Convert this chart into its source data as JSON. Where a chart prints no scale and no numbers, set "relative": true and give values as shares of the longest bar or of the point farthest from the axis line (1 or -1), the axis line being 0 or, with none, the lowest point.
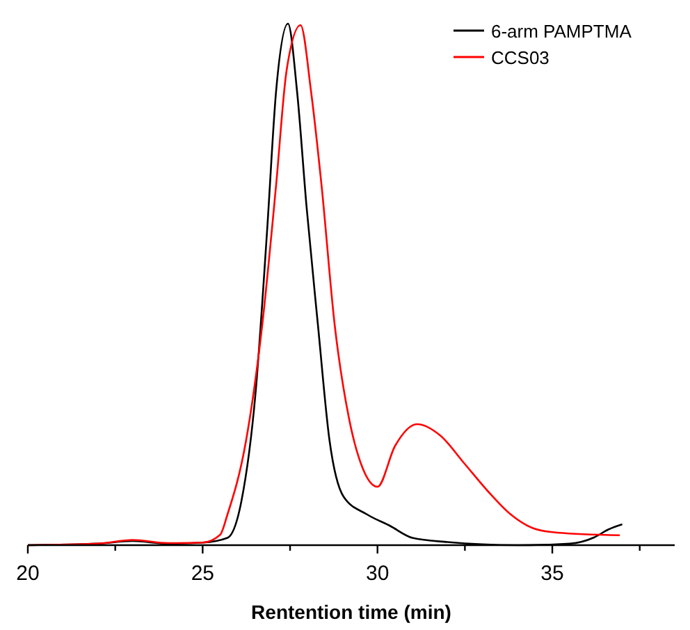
{
  "chart_data": {
    "type": "line",
    "relative": true,
    "xlabel": "Rentention time (min)",
    "xlim": [
      20,
      38.5
    ],
    "xticks": [
      20,
      {
        "value": 22.5,
        "label": null
      },
      25,
      {
        "value": 27.5,
        "label": null
      },
      30,
      {
        "value": 32.5,
        "label": null
      },
      35,
      {
        "value": 37.5,
        "label": null
      }
    ],
    "legend": "top right",
    "tick_labels": "x",
    "series": [
      {
        "name": "6-arm PAMPTMA",
        "color": "#000000",
        "x": [
          20,
          22,
          23,
          24,
          25,
          25.71,
          26.11,
          26.51,
          26.84,
          27.1,
          27.44,
          27.7,
          27.97,
          28.3,
          28.63,
          29.03,
          29.7,
          30.36,
          31.0,
          32,
          34,
          35.5,
          36.2,
          36.6,
          37.0
        ],
        "values": [
          0,
          0.003,
          0.008,
          0.003,
          0.005,
          0.014,
          0.085,
          0.29,
          0.6,
          0.87,
          1,
          0.87,
          0.65,
          0.42,
          0.2,
          0.093,
          0.059,
          0.037,
          0.014,
          0.006,
          0,
          0.003,
          0.015,
          0.03,
          0.04
        ]
      },
      {
        "name": "CCS03",
        "color": "#ff0000",
        "x": [
          20,
          22,
          23,
          24,
          25,
          25.5,
          25.71,
          26.24,
          26.7,
          27.1,
          27.4,
          27.8,
          28.1,
          28.4,
          28.78,
          29.18,
          29.58,
          30.0,
          30.5,
          31.13,
          31.8,
          32.48,
          33.15,
          33.81,
          34.47,
          35.14,
          36.93
        ],
        "values": [
          0,
          0.003,
          0.01,
          0.004,
          0.005,
          0.02,
          0.059,
          0.2,
          0.42,
          0.69,
          0.91,
          0.997,
          0.87,
          0.69,
          0.42,
          0.245,
          0.147,
          0.112,
          0.19,
          0.232,
          0.21,
          0.157,
          0.104,
          0.059,
          0.032,
          0.024,
          0.019
        ]
      }
    ]
  }
}
